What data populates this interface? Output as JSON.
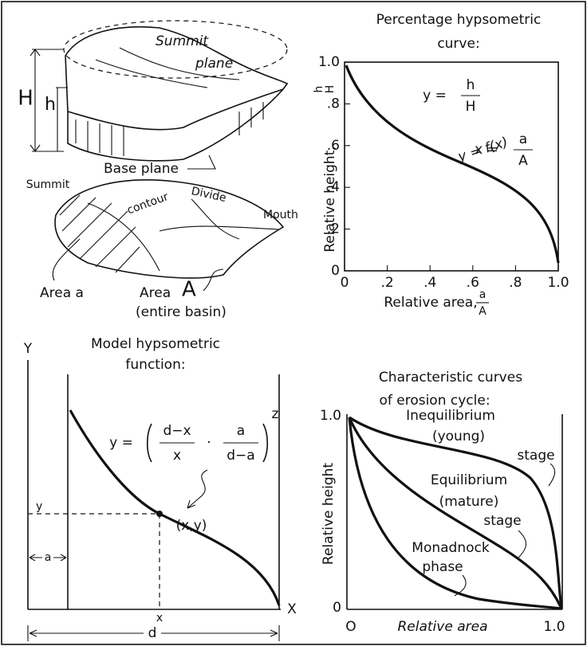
{
  "basin_sketch": {
    "H": "H",
    "h": "h",
    "summit": "Summit",
    "plane": "plane",
    "base_plane": "Base plane",
    "summit_contour_1": "Summit",
    "summit_contour_2": "contour",
    "divide": "Divide",
    "mouth": "Mouth",
    "area_a": "Area a",
    "area": "Area",
    "area_A": "A",
    "entire_basin": "(entire basin)"
  },
  "percentage_curve": {
    "title_1": "Percentage hypsometric",
    "title_2": "curve:",
    "eq_y": "y =",
    "eq_h": "h",
    "eq_H": "H",
    "eq_x": "x =",
    "eq_a": "a",
    "eq_A": "A",
    "curve_label": "y = f(x)",
    "y_label": "Relative height,",
    "y_frac_h": "h",
    "y_frac_H": "H",
    "x_label": "Relative area,",
    "x_frac_a": "a",
    "x_frac_A": "A",
    "yticks": [
      "0",
      ".2",
      ".4",
      ".6",
      ".8",
      "1.0"
    ],
    "xticks": [
      "0",
      ".2",
      ".4",
      ".6",
      ".8",
      "1.0"
    ]
  },
  "model_function": {
    "title_1": "Model hypsometric",
    "title_2": "function:",
    "axis_Y": "Y",
    "axis_X": "X",
    "eq_y": "y =",
    "eq_num1": "d−x",
    "eq_den1": "x",
    "eq_dot": "·",
    "eq_num2": "a",
    "eq_den2": "d−a",
    "eq_exp": "z",
    "point": "(x,y)",
    "y_mark": "y",
    "x_mark": "x",
    "a_mark": "a",
    "d_mark": "d"
  },
  "erosion_cycle": {
    "title_1": "Characteristic curves",
    "title_2": "of erosion cycle:",
    "y_top": "1.0",
    "y_bottom": "0",
    "y_label": "Relative height",
    "x_left": "O",
    "x_label": "Relative area",
    "x_right": "1.0",
    "young_1": "Inequilibrium",
    "young_2": "(young)",
    "young_3": "stage",
    "mature_1": "Equilibrium",
    "mature_2": "(mature)",
    "mature_3": "stage",
    "monadnock_1": "Monadnock",
    "monadnock_2": "phase"
  }
}
